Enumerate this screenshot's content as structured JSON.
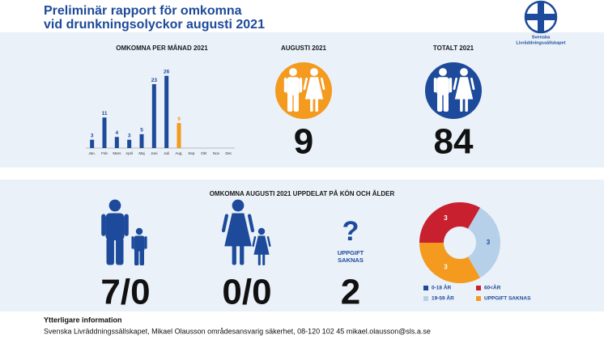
{
  "header": {
    "title": [
      "Preliminär rapport för omkomna",
      "vid drunkningsolyckor augusti 2021"
    ],
    "logo": [
      "Svenska",
      "Livräddningssällskapet"
    ]
  },
  "chart_data": [
    {
      "type": "bar",
      "title": "OMKOMNA PER MÅNAD 2021",
      "categories": [
        "Jan.",
        "Feb",
        "Mars",
        "April",
        "Maj",
        "Juni",
        "Juli",
        "Aug.",
        "Sep",
        "Okt",
        "Nov",
        "Dec"
      ],
      "values": [
        3,
        11,
        4,
        3,
        5,
        23,
        26,
        9,
        null,
        null,
        null,
        null
      ],
      "color": "#1d4a9a",
      "highlight_color": "#f39a1f",
      "ylim": [
        0,
        30
      ]
    },
    {
      "type": "pie",
      "categories": [
        "0-18 ÅR",
        "60<ÅR",
        "19-59 ÅR",
        "UPPGIFT SAKNAS"
      ],
      "values": [
        0,
        3,
        3,
        3
      ],
      "colors": [
        "#1d4a9a",
        "#c8202f",
        "#b7d0ea",
        "#f39a1f"
      ]
    }
  ],
  "stats": {
    "august": {
      "label": "AUGUSTI 2021",
      "value": 9
    },
    "total": {
      "label": "TOTALT 2021",
      "value": 84
    }
  },
  "breakdown": {
    "title": "OMKOMNA AUGUSTI 2021 UPPDELAT PÅ KÖN OCH ÅLDER",
    "men": "7/0",
    "women": "0/0",
    "unknown": {
      "label": [
        "UPPGIFT",
        "SAKNAS"
      ],
      "value": 2
    }
  },
  "footer": {
    "heading": "Ytterligare information",
    "text": "Svenska Livräddningssällskapet, Mikael Olausson områdesansvarig säkerhet, 08-120 102 45 mikael.olausson@sls.a.se"
  }
}
